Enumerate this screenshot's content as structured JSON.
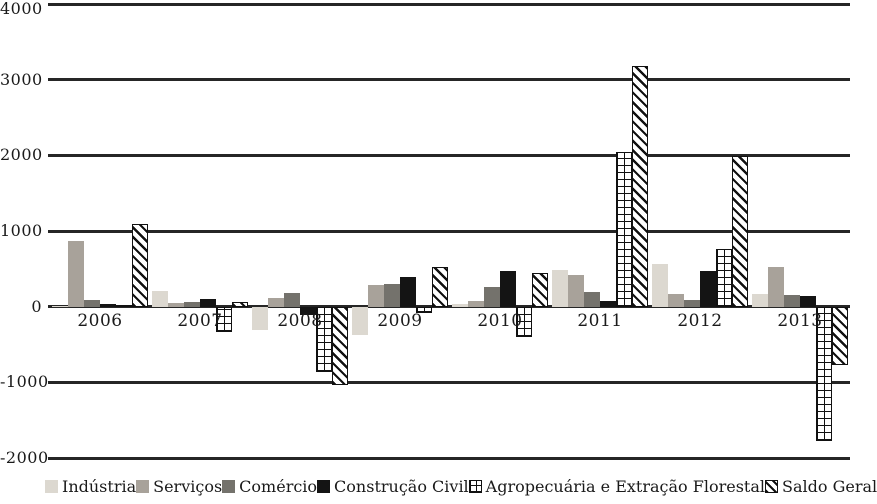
{
  "chart_data": {
    "type": "bar",
    "title": "",
    "xlabel": "",
    "ylabel": "",
    "categories": [
      "2006",
      "2007",
      "2008",
      "2009",
      "2010",
      "2011",
      "2012",
      "2013"
    ],
    "series": [
      {
        "name": "Indústria",
        "style": "solid",
        "color": "#dcd8d0",
        "values": [
          15,
          205,
          -310,
          -370,
          40,
          480,
          560,
          165
        ]
      },
      {
        "name": "Serviços",
        "style": "solid",
        "color": "#a8a29a",
        "values": [
          870,
          55,
          115,
          280,
          80,
          415,
          170,
          520
        ]
      },
      {
        "name": "Comércio",
        "style": "solid",
        "color": "#74726c",
        "values": [
          90,
          65,
          180,
          300,
          260,
          190,
          85,
          160
        ]
      },
      {
        "name": "Construção Civil",
        "style": "solid",
        "color": "#141414",
        "values": [
          40,
          105,
          -105,
          395,
          475,
          70,
          470,
          135
        ]
      },
      {
        "name": "Agropecuária e Extração Florestal",
        "style": "grid",
        "color": "#ffffff",
        "values": [
          25,
          -330,
          -860,
          -80,
          -395,
          2050,
          760,
          -1780
        ]
      },
      {
        "name": "Saldo Geral",
        "style": "hatch",
        "color": "#ffffff",
        "values": [
          1090,
          60,
          -1040,
          520,
          450,
          3180,
          1990,
          -770
        ]
      }
    ],
    "ylim": [
      -2000,
      4000
    ],
    "ytick_step": 1000,
    "yticks": [
      "4000",
      "3000",
      "2000",
      "1000",
      "0",
      "-1000",
      "-2000"
    ],
    "grid": true,
    "gridline_color": "#262626",
    "legend_position": "bottom"
  }
}
